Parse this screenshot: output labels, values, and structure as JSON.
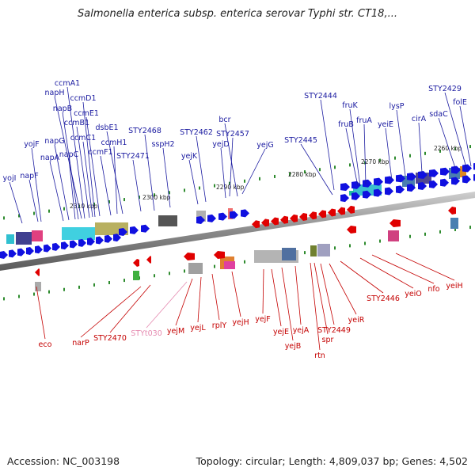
{
  "title": "Salmonella enterica subsp. enterica serovar Typhi str. CT18,...",
  "footer": {
    "accession": "Accession: NC_003198",
    "topology": "Topology: circular; Length: 4,809,037 bp; Genes: 4,502"
  },
  "colors": {
    "forward_gene": "#1010e0",
    "reverse_gene": "#e00000",
    "top_label": "#1a1aa0",
    "bottom_label": "#c40000",
    "pseudo_label": "#e58ab0",
    "tick": "#2e8b2e",
    "backbone": "#8a8a8a"
  },
  "kbp_labels": [
    "2260 kbp",
    "2270 kbp",
    "2280 kbp",
    "2290 kbp",
    "2300 kbp",
    "2310 kbp"
  ],
  "top_genes": [
    "STY2429",
    "folE",
    "sdaC",
    "cirA",
    "lysP",
    "yeiE",
    "fruA",
    "fruB",
    "fruK",
    "STY2444",
    "STY2445",
    "yejG",
    "STY2457",
    "yejD",
    "bcr",
    "STY2462",
    "yejK",
    "sspH2",
    "STY2468",
    "STY2471",
    "dsbE1",
    "ccmH1",
    "ccmF1",
    "ccmE1",
    "ccmD1",
    "ccmC1",
    "ccmB1",
    "ccmA1",
    "napH",
    "napB",
    "napC",
    "napG",
    "napA",
    "yojF",
    "napF",
    "yojI"
  ],
  "bottom_genes": [
    "yeiH",
    "nfo",
    "yeiO",
    "STY2446",
    "yeiR",
    "STY2449",
    "spr",
    "rtn",
    "yejA",
    "yejB",
    "yejE",
    "yejF",
    "yejH",
    "rplY",
    "yejL",
    "yejM",
    "STYt030",
    "STY2470",
    "narP",
    "eco"
  ]
}
